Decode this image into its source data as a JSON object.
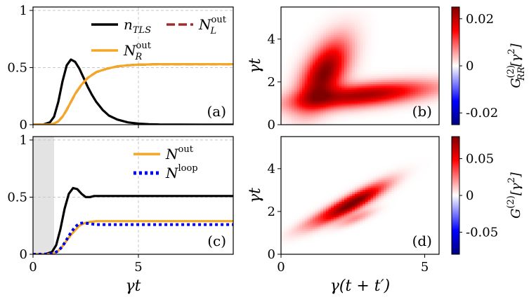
{
  "chart_data": [
    {
      "id": "a",
      "type": "line",
      "panel_label": "(a)",
      "xlim": [
        0,
        9.5
      ],
      "ylim": [
        0,
        1.03
      ],
      "xticks": [
        "0",
        "5"
      ],
      "yticks": [
        "0",
        "0.5",
        "1"
      ],
      "xlabel": "",
      "ylabel": "",
      "grid": true,
      "series": [
        {
          "name": "n_TLS",
          "label_main": "n",
          "label_sub": "TLS",
          "label_sup": "",
          "color": "#000000",
          "style": "solid",
          "x": [
            0,
            0.5,
            0.8,
            1.0,
            1.2,
            1.4,
            1.6,
            1.8,
            2.0,
            2.2,
            2.4,
            2.6,
            2.8,
            3.0,
            3.3,
            3.6,
            4.0,
            4.5,
            5.0,
            5.5,
            6.0,
            7.0,
            8.0,
            9.5
          ],
          "y": [
            0,
            0.002,
            0.02,
            0.07,
            0.2,
            0.38,
            0.52,
            0.57,
            0.55,
            0.49,
            0.41,
            0.33,
            0.26,
            0.2,
            0.13,
            0.08,
            0.045,
            0.02,
            0.009,
            0.004,
            0.002,
            0.001,
            0,
            0
          ]
        },
        {
          "name": "N_L^out",
          "label_main": "N",
          "label_sub": "L",
          "label_sup": "out",
          "color": "#a52a2a",
          "style": "dashed",
          "x": [
            0,
            0.8,
            1.0,
            1.2,
            1.4,
            1.6,
            1.8,
            2.0,
            2.3,
            2.6,
            3.0,
            3.5,
            4.0,
            4.5,
            5.0,
            6.0,
            7.0,
            8.0,
            9.5
          ],
          "y": [
            0,
            0.002,
            0.01,
            0.03,
            0.07,
            0.13,
            0.2,
            0.27,
            0.35,
            0.41,
            0.46,
            0.49,
            0.51,
            0.52,
            0.525,
            0.53,
            0.53,
            0.53,
            0.53
          ]
        },
        {
          "name": "N_R^out",
          "label_main": "N",
          "label_sub": "R",
          "label_sup": "out",
          "color": "#f5a623",
          "style": "solid",
          "x": [
            0,
            0.8,
            1.0,
            1.2,
            1.4,
            1.6,
            1.8,
            2.0,
            2.3,
            2.6,
            3.0,
            3.5,
            4.0,
            4.5,
            5.0,
            6.0,
            7.0,
            8.0,
            9.5
          ],
          "y": [
            0,
            0.002,
            0.01,
            0.03,
            0.07,
            0.13,
            0.2,
            0.27,
            0.35,
            0.41,
            0.46,
            0.49,
            0.51,
            0.52,
            0.525,
            0.53,
            0.53,
            0.53,
            0.53
          ]
        }
      ]
    },
    {
      "id": "b",
      "type": "heatmap",
      "panel_label": "(b)",
      "xlim": [
        0,
        5.5
      ],
      "ylim": [
        0,
        5.5
      ],
      "xticks": [],
      "yticks": [
        "0",
        "2",
        "4"
      ],
      "ylabel": "γt",
      "colorbar": {
        "label": "G^(2)_RR [γ^2]",
        "label_main": "G",
        "label_sup": "(2)",
        "label_sub": "RR",
        "label_unit": "[γ",
        "ticks": [
          "0.02",
          "0",
          "-0.02"
        ],
        "range": [
          -0.025,
          0.025
        ]
      },
      "blobs": [
        {
          "cx": 1.5,
          "cy": 2.4,
          "sx": 0.45,
          "sy": 1.1,
          "amp": 0.025,
          "rot": -20
        },
        {
          "cx": 2.9,
          "cy": 1.4,
          "sx": 1.6,
          "sy": 0.35,
          "amp": 0.022,
          "rot": 8
        }
      ]
    },
    {
      "id": "c",
      "type": "line",
      "panel_label": "(c)",
      "xlim": [
        0,
        9.5
      ],
      "ylim": [
        0,
        1.03
      ],
      "xticks": [
        "0",
        "5"
      ],
      "yticks": [
        "0",
        "0.5",
        "1"
      ],
      "xlabel": "γt",
      "ylabel": "",
      "grid": true,
      "shaded_x": [
        0,
        1.0
      ],
      "series": [
        {
          "name": "n_TLS",
          "label_main": "",
          "label_sub": "",
          "label_sup": "",
          "color": "#000000",
          "style": "solid",
          "legend": false,
          "x": [
            0,
            0.6,
            0.9,
            1.1,
            1.3,
            1.5,
            1.7,
            1.9,
            2.1,
            2.3,
            2.5,
            2.7,
            2.9,
            3.1,
            3.4,
            3.8,
            4.5,
            6.0,
            8.0,
            9.5
          ],
          "y": [
            0,
            0.002,
            0.02,
            0.08,
            0.22,
            0.4,
            0.53,
            0.58,
            0.57,
            0.53,
            0.5,
            0.5,
            0.51,
            0.51,
            0.51,
            0.51,
            0.51,
            0.51,
            0.51,
            0.51
          ]
        },
        {
          "name": "N_out",
          "label_main": "N",
          "label_sub": "",
          "label_sup": "out",
          "color": "#f5a623",
          "style": "solid",
          "x": [
            0,
            0.8,
            1.0,
            1.2,
            1.4,
            1.6,
            1.8,
            2.0,
            2.2,
            2.4,
            2.6,
            2.8,
            3.0,
            3.5,
            4.0,
            6.0,
            8.0,
            9.5
          ],
          "y": [
            0,
            0.002,
            0.01,
            0.03,
            0.07,
            0.12,
            0.17,
            0.21,
            0.25,
            0.27,
            0.28,
            0.285,
            0.29,
            0.29,
            0.29,
            0.29,
            0.29,
            0.29
          ]
        },
        {
          "name": "N_loop",
          "label_main": "N",
          "label_sub": "",
          "label_sup": "loop",
          "color": "#0000ee",
          "style": "dotted",
          "x": [
            0,
            0.8,
            1.0,
            1.2,
            1.4,
            1.6,
            1.8,
            2.0,
            2.2,
            2.4,
            2.6,
            2.8,
            3.0,
            3.5,
            4.0,
            6.0,
            8.0,
            9.5
          ],
          "y": [
            0,
            0.002,
            0.01,
            0.03,
            0.07,
            0.13,
            0.19,
            0.24,
            0.27,
            0.275,
            0.27,
            0.265,
            0.26,
            0.26,
            0.26,
            0.26,
            0.26,
            0.26
          ]
        }
      ]
    },
    {
      "id": "d",
      "type": "heatmap",
      "panel_label": "(d)",
      "xlim": [
        0,
        5.5
      ],
      "ylim": [
        0,
        5.5
      ],
      "xticks": [
        "0",
        "5"
      ],
      "yticks": [
        "0",
        "2",
        "4"
      ],
      "xlabel": "γ(t + t′)",
      "ylabel": "γt",
      "colorbar": {
        "label": "G^(2)[γ^2]",
        "label_main": "G",
        "label_sup": "(2)",
        "label_sub": "",
        "label_unit": "[γ",
        "ticks": [
          "0.05",
          "0",
          "-0.05"
        ],
        "range": [
          -0.08,
          0.08
        ]
      },
      "blobs": [
        {
          "cx": 2.6,
          "cy": 2.5,
          "sx": 0.9,
          "sy": 0.22,
          "amp": 0.075,
          "rot": 38
        },
        {
          "cx": 1.7,
          "cy": 1.9,
          "sx": 0.9,
          "sy": 0.2,
          "amp": 0.03,
          "rot": 35
        },
        {
          "cx": 2.6,
          "cy": 1.7,
          "sx": 0.5,
          "sy": 0.15,
          "amp": 0.02,
          "rot": 30
        },
        {
          "cx": 2.1,
          "cy": 2.2,
          "sx": 0.9,
          "sy": 0.08,
          "amp": -0.01,
          "rot": 38
        }
      ]
    }
  ]
}
